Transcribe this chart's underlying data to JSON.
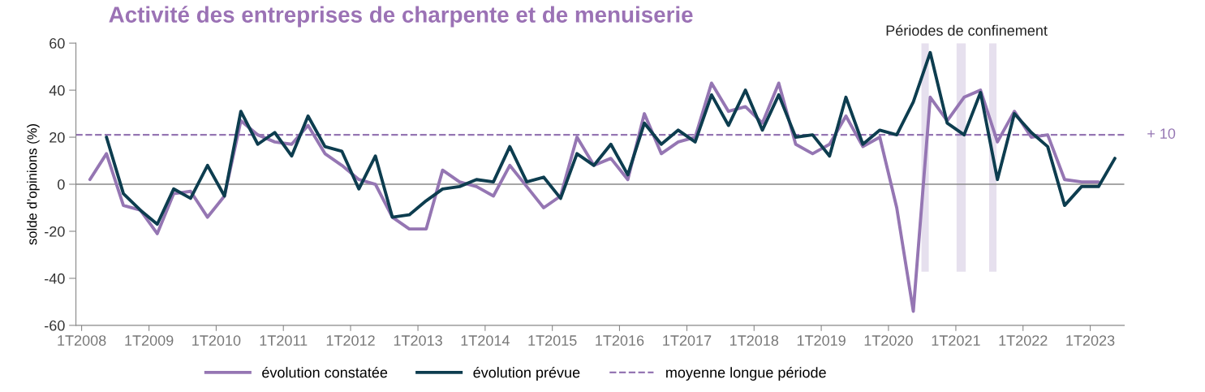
{
  "chart_data": {
    "type": "line",
    "title": "Activité des entreprises de charpente et de menuiserie",
    "ylabel": "solde d’opinions (%)",
    "x": [
      "2008-02-15",
      "2008-05-15",
      "2008-08-15",
      "2008-11-15",
      "2009-02-15",
      "2009-05-15",
      "2009-08-15",
      "2009-11-15",
      "2010-02-15",
      "2010-05-15",
      "2010-08-15",
      "2010-11-15",
      "2011-02-15",
      "2011-05-15",
      "2011-08-15",
      "2011-11-15",
      "2012-02-15",
      "2012-05-15",
      "2012-08-15",
      "2012-11-15",
      "2013-02-15",
      "2013-05-15",
      "2013-08-15",
      "2013-11-15",
      "2014-02-15",
      "2014-05-15",
      "2014-08-15",
      "2014-11-15",
      "2015-02-15",
      "2015-05-15",
      "2015-08-15",
      "2015-11-15",
      "2016-02-15",
      "2016-05-15",
      "2016-08-15",
      "2016-11-15",
      "2017-02-15",
      "2017-05-15",
      "2017-08-15",
      "2017-11-15",
      "2018-02-15",
      "2018-05-15",
      "2018-08-15",
      "2018-11-15",
      "2019-02-15",
      "2019-05-15",
      "2019-08-15",
      "2019-11-15",
      "2020-02-15",
      "2020-05-15",
      "2020-08-15",
      "2020-11-15",
      "2021-02-15",
      "2021-05-15",
      "2021-08-15",
      "2021-11-15",
      "2022-02-15",
      "2022-05-15",
      "2022-08-15",
      "2022-11-15",
      "2023-02-15",
      "2023-05-15"
    ],
    "series": [
      {
        "name": "évolution constatée",
        "color": "#9576b3",
        "values": [
          2,
          13,
          -9,
          -11,
          -21,
          -4,
          -3,
          -14,
          -5,
          27,
          21,
          18,
          17,
          25,
          13,
          8,
          2,
          0,
          -14,
          -19,
          -19,
          6,
          1,
          -1,
          -5,
          8,
          -1,
          -10,
          -5,
          20,
          8,
          11,
          2,
          30,
          13,
          18,
          20,
          43,
          31,
          33,
          26,
          43,
          17,
          13,
          17,
          29,
          16,
          20,
          -10,
          -54,
          37,
          27,
          37,
          40,
          18,
          31,
          20,
          21,
          2,
          1,
          1,
          null
        ]
      },
      {
        "name": "évolution prévue",
        "color": "#0d3d4f",
        "values": [
          null,
          20,
          -4,
          -11,
          -17,
          -2,
          -6,
          8,
          -5,
          31,
          17,
          22,
          12,
          29,
          16,
          14,
          -2,
          12,
          -14,
          -13,
          -7,
          -2,
          -1,
          2,
          1,
          16,
          1,
          3,
          -6,
          13,
          8,
          17,
          4,
          26,
          17,
          23,
          18,
          38,
          25,
          40,
          23,
          38,
          20,
          21,
          12,
          37,
          17,
          23,
          21,
          35,
          56,
          26,
          21,
          39,
          2,
          30,
          22,
          16,
          -9,
          -1,
          -1,
          11
        ]
      }
    ],
    "xlim": [
      "2007-12-01",
      "2023-07-05"
    ],
    "xticks": [
      {
        "value": "2008-01-01",
        "label": "1T2008"
      },
      {
        "value": "2009-01-01",
        "label": "1T2009"
      },
      {
        "value": "2010-01-01",
        "label": "1T2010"
      },
      {
        "value": "2011-01-01",
        "label": "1T2011"
      },
      {
        "value": "2012-01-01",
        "label": "1T2012"
      },
      {
        "value": "2013-01-01",
        "label": "1T2013"
      },
      {
        "value": "2014-01-01",
        "label": "1T2014"
      },
      {
        "value": "2015-01-01",
        "label": "1T2015"
      },
      {
        "value": "2016-01-01",
        "label": "1T2016"
      },
      {
        "value": "2017-01-01",
        "label": "1T2017"
      },
      {
        "value": "2018-01-01",
        "label": "1T2018"
      },
      {
        "value": "2019-01-01",
        "label": "1T2019"
      },
      {
        "value": "2020-01-01",
        "label": "1T2020"
      },
      {
        "value": "2021-01-01",
        "label": "1T2021"
      },
      {
        "value": "2022-01-01",
        "label": "1T2022"
      },
      {
        "value": "2023-01-01",
        "label": "1T2023"
      }
    ],
    "ylim": [
      -60,
      60
    ],
    "yticks": [
      -60,
      -40,
      -20,
      0,
      20,
      40,
      60
    ],
    "ref_lines": [
      {
        "axis": "y",
        "value": 21,
        "label": "moyenne longue période",
        "color": "#9576b3",
        "line_style": "dashed"
      }
    ],
    "bands": [
      {
        "axis": "x",
        "from": "2020-06-28",
        "to": "2020-08-07",
        "color": "#e6e0ee",
        "label": "Périodes de confinement"
      },
      {
        "axis": "x",
        "from": "2021-01-05",
        "to": "2021-02-24",
        "color": "#e6e0ee"
      },
      {
        "axis": "x",
        "from": "2021-07-01",
        "to": "2021-08-10",
        "color": "#e6e0ee"
      }
    ],
    "annotations": [
      "+ 10"
    ],
    "legend": "bottom",
    "marker": "none",
    "line_style": "solid"
  }
}
